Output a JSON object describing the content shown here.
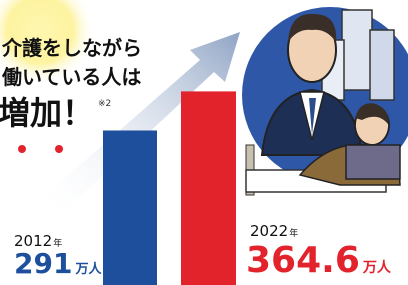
{
  "chart_data": {
    "type": "bar",
    "title_lines": [
      "介護をしながら",
      "働いている人は"
    ],
    "headline": "増加！",
    "note": "※2",
    "categories": [
      "2012",
      "2022"
    ],
    "category_suffix": "年",
    "values": [
      291,
      364.6
    ],
    "unit": "万人",
    "colors": [
      "#1d4f9c",
      "#e3232c"
    ]
  }
}
